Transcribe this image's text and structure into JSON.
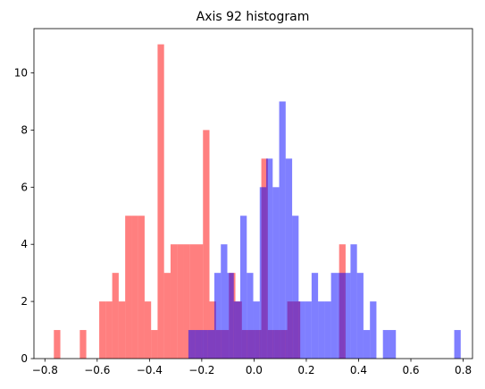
{
  "chart_data": {
    "type": "bar",
    "title": "Axis 92 histogram",
    "xlabel": "",
    "ylabel": "",
    "xlim": [
      -0.8419,
      0.8357
    ],
    "ylim": [
      0,
      11.55
    ],
    "xticks": [
      -0.8,
      -0.6,
      -0.4,
      -0.2,
      0.0,
      0.2,
      0.4,
      0.6,
      0.8
    ],
    "xtick_labels": [
      "−0.8",
      "−0.6",
      "−0.4",
      "−0.2",
      "0.0",
      "0.2",
      "0.4",
      "0.6",
      "0.8"
    ],
    "yticks": [
      0,
      2,
      4,
      6,
      8,
      10
    ],
    "ytick_labels": [
      "0",
      "2",
      "4",
      "6",
      "8",
      "10"
    ],
    "grid": false,
    "series": [
      {
        "color": "#ff0000",
        "alpha": 0.5,
        "bin_width": 0.0248,
        "bins": [
          {
            "x0": -0.7657,
            "count": 1
          },
          {
            "x0": -0.6665,
            "count": 1
          },
          {
            "x0": -0.5922,
            "count": 2
          },
          {
            "x0": -0.5673,
            "count": 2
          },
          {
            "x0": -0.5425,
            "count": 3
          },
          {
            "x0": -0.5177,
            "count": 2
          },
          {
            "x0": -0.4929,
            "count": 5
          },
          {
            "x0": -0.4681,
            "count": 5
          },
          {
            "x0": -0.4433,
            "count": 5
          },
          {
            "x0": -0.4185,
            "count": 2
          },
          {
            "x0": -0.3937,
            "count": 1
          },
          {
            "x0": -0.3689,
            "count": 11
          },
          {
            "x0": -0.3441,
            "count": 3
          },
          {
            "x0": -0.3193,
            "count": 4
          },
          {
            "x0": -0.2945,
            "count": 4
          },
          {
            "x0": -0.2697,
            "count": 4
          },
          {
            "x0": -0.2449,
            "count": 4
          },
          {
            "x0": -0.2201,
            "count": 4
          },
          {
            "x0": -0.1953,
            "count": 8
          },
          {
            "x0": -0.1705,
            "count": 2
          },
          {
            "x0": -0.1457,
            "count": 1
          },
          {
            "x0": -0.1209,
            "count": 1
          },
          {
            "x0": -0.0961,
            "count": 3
          },
          {
            "x0": -0.0713,
            "count": 2
          },
          {
            "x0": -0.0465,
            "count": 1
          },
          {
            "x0": -0.0217,
            "count": 1
          },
          {
            "x0": 0.0031,
            "count": 1
          },
          {
            "x0": 0.0279,
            "count": 7
          },
          {
            "x0": 0.0527,
            "count": 1
          },
          {
            "x0": 0.0775,
            "count": 1
          },
          {
            "x0": 0.1023,
            "count": 1
          },
          {
            "x0": 0.1271,
            "count": 2
          },
          {
            "x0": 0.1519,
            "count": 2
          },
          {
            "x0": 0.3255,
            "count": 4
          }
        ]
      },
      {
        "color": "#0000ff",
        "alpha": 0.5,
        "bin_width": 0.0248,
        "bins": [
          {
            "x0": -0.251,
            "count": 1
          },
          {
            "x0": -0.2262,
            "count": 1
          },
          {
            "x0": -0.2014,
            "count": 1
          },
          {
            "x0": -0.1766,
            "count": 1
          },
          {
            "x0": -0.1518,
            "count": 3
          },
          {
            "x0": -0.127,
            "count": 4
          },
          {
            "x0": -0.1022,
            "count": 3
          },
          {
            "x0": -0.0774,
            "count": 2
          },
          {
            "x0": -0.0526,
            "count": 5
          },
          {
            "x0": -0.0278,
            "count": 3
          },
          {
            "x0": -0.003,
            "count": 2
          },
          {
            "x0": 0.0218,
            "count": 6
          },
          {
            "x0": 0.0466,
            "count": 7
          },
          {
            "x0": 0.0714,
            "count": 6
          },
          {
            "x0": 0.0962,
            "count": 9
          },
          {
            "x0": 0.121,
            "count": 7
          },
          {
            "x0": 0.1458,
            "count": 5
          },
          {
            "x0": 0.1706,
            "count": 2
          },
          {
            "x0": 0.1954,
            "count": 2
          },
          {
            "x0": 0.2202,
            "count": 3
          },
          {
            "x0": 0.245,
            "count": 2
          },
          {
            "x0": 0.2698,
            "count": 2
          },
          {
            "x0": 0.2946,
            "count": 3
          },
          {
            "x0": 0.3194,
            "count": 3
          },
          {
            "x0": 0.3442,
            "count": 3
          },
          {
            "x0": 0.369,
            "count": 4
          },
          {
            "x0": 0.3938,
            "count": 3
          },
          {
            "x0": 0.4186,
            "count": 1
          },
          {
            "x0": 0.4434,
            "count": 2
          },
          {
            "x0": 0.493,
            "count": 1
          },
          {
            "x0": 0.5178,
            "count": 1
          },
          {
            "x0": 0.7658,
            "count": 1
          }
        ]
      }
    ]
  }
}
